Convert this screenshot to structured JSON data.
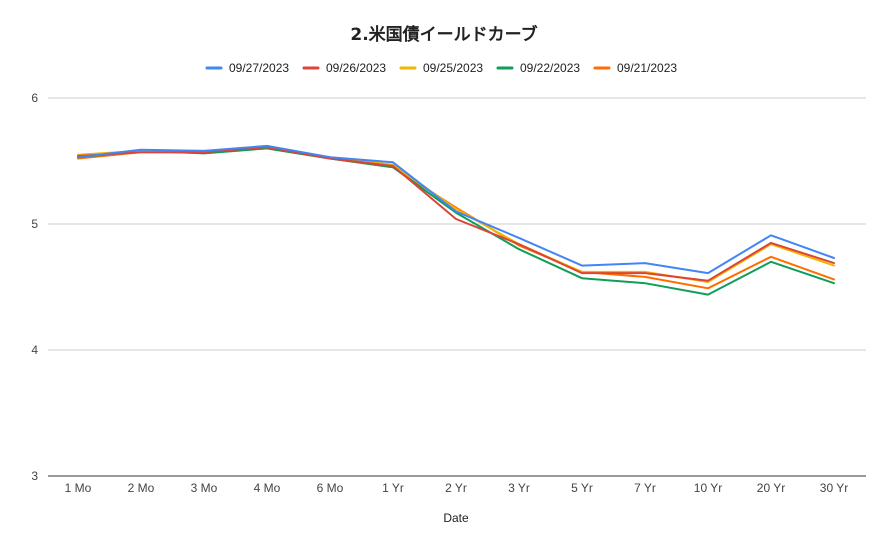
{
  "chart_data": {
    "type": "line",
    "title": "2.米国債イールドカーブ",
    "xlabel": "Date",
    "ylabel": "",
    "ylim": [
      3,
      6
    ],
    "yticks": [
      3,
      4,
      5,
      6
    ],
    "grid": true,
    "legend_position": "top",
    "categories": [
      "1 Mo",
      "2 Mo",
      "3 Mo",
      "4 Mo",
      "6 Mo",
      "1 Yr",
      "2 Yr",
      "3 Yr",
      "5 Yr",
      "7 Yr",
      "10 Yr",
      "20 Yr",
      "30 Yr"
    ],
    "series": [
      {
        "name": "09/27/2023",
        "color": "#4285f4",
        "values": [
          5.53,
          5.59,
          5.58,
          5.62,
          5.53,
          5.49,
          5.1,
          4.89,
          4.67,
          4.69,
          4.61,
          4.91,
          4.73
        ]
      },
      {
        "name": "09/26/2023",
        "color": "#db4437",
        "values": [
          5.54,
          5.57,
          5.57,
          5.61,
          5.52,
          5.46,
          5.04,
          4.84,
          4.61,
          4.61,
          4.55,
          4.85,
          4.69
        ]
      },
      {
        "name": "09/25/2023",
        "color": "#f4b400",
        "values": [
          5.55,
          5.58,
          5.58,
          5.61,
          5.53,
          5.47,
          5.12,
          4.84,
          4.62,
          4.62,
          4.54,
          4.84,
          4.67
        ]
      },
      {
        "name": "09/22/2023",
        "color": "#0f9d58",
        "values": [
          5.53,
          5.58,
          5.56,
          5.6,
          5.52,
          5.45,
          5.09,
          4.8,
          4.57,
          4.53,
          4.44,
          4.7,
          4.53
        ]
      },
      {
        "name": "09/21/2023",
        "color": "#ff6d01",
        "values": [
          5.52,
          5.57,
          5.57,
          5.6,
          5.52,
          5.45,
          5.13,
          4.83,
          4.62,
          4.58,
          4.49,
          4.74,
          4.56
        ]
      }
    ]
  }
}
